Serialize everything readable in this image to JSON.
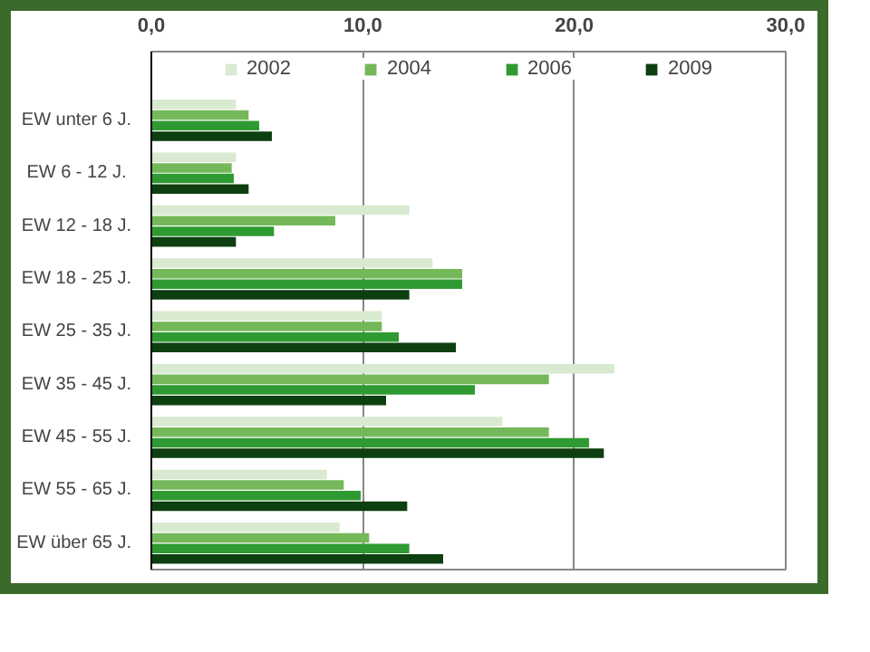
{
  "chart_data": {
    "type": "bar",
    "orientation": "horizontal",
    "categories": [
      "EW unter 6 J.",
      "EW  6 - 12 J.",
      "EW 12 - 18 J.",
      "EW 18 - 25 J.",
      "EW 25 - 35 J.",
      "EW 35 - 45 J.",
      "EW 45 - 55 J.",
      "EW 55 - 65 J.",
      "EW über 65 J."
    ],
    "series": [
      {
        "name": "2002",
        "color": "#d8ead0",
        "values": [
          4.0,
          4.0,
          12.2,
          13.3,
          10.9,
          21.9,
          16.6,
          8.3,
          8.9
        ]
      },
      {
        "name": "2004",
        "color": "#74b85a",
        "values": [
          4.6,
          3.8,
          8.7,
          14.7,
          10.9,
          18.8,
          18.8,
          9.1,
          10.3
        ]
      },
      {
        "name": "2006",
        "color": "#2f9a32",
        "values": [
          5.1,
          3.9,
          5.8,
          14.7,
          11.7,
          15.3,
          20.7,
          9.9,
          12.2
        ]
      },
      {
        "name": "2009",
        "color": "#0d3f10",
        "values": [
          5.7,
          4.6,
          4.0,
          12.2,
          14.4,
          11.1,
          21.4,
          12.1,
          13.8
        ]
      }
    ],
    "xlim": [
      0,
      30
    ],
    "xticks": [
      {
        "value": 0,
        "label": "0,0"
      },
      {
        "value": 10,
        "label": "10,0"
      },
      {
        "value": 20,
        "label": "20,0"
      },
      {
        "value": 30,
        "label": "30,0"
      }
    ],
    "grid": "x",
    "legend": "top"
  }
}
